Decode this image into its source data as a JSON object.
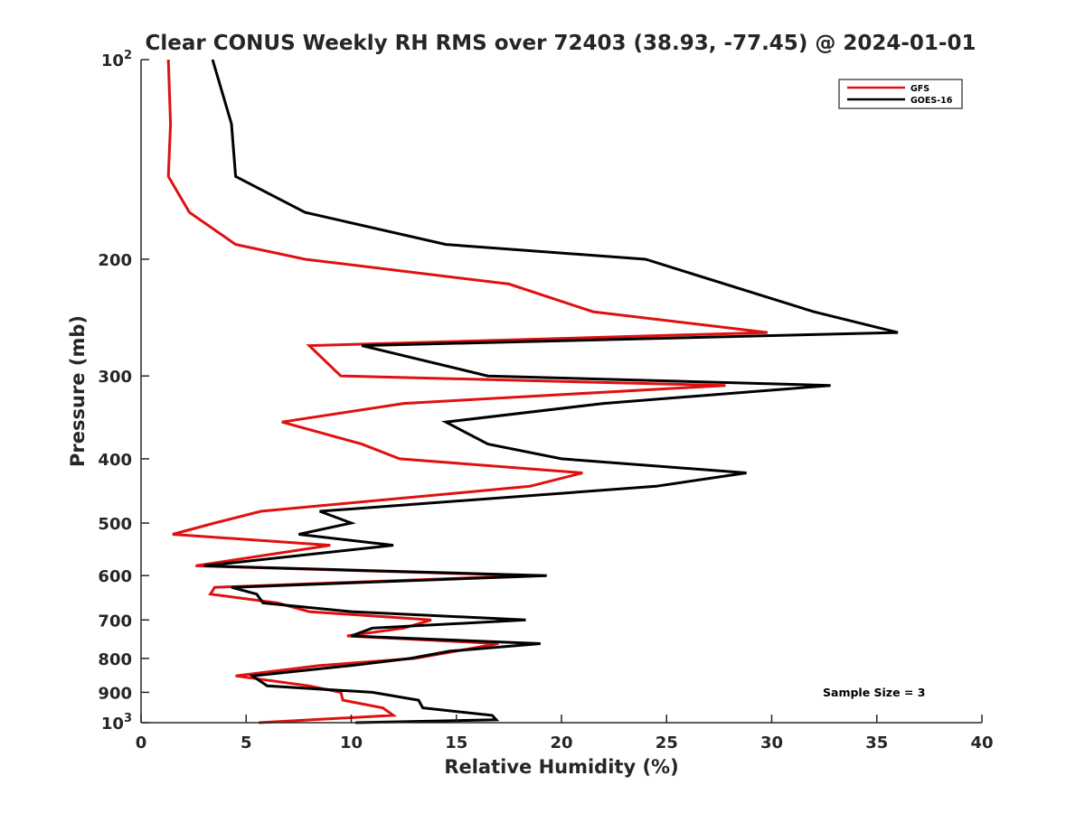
{
  "chart_data": {
    "type": "line",
    "title": "Clear CONUS Weekly RH RMS over 72403 (38.93, -77.45) @ 2024-01-01",
    "xlabel": "Relative Humidity (%)",
    "ylabel": "Pressure (mb)",
    "xlim": [
      0,
      40
    ],
    "ylim": [
      100,
      1000
    ],
    "y_scale": "log",
    "y_reversed": true,
    "grid": false,
    "legend_position": "top-right",
    "x_ticks": [
      "0",
      "5",
      "10",
      "15",
      "20",
      "25",
      "30",
      "35",
      "40"
    ],
    "y_ticks": [
      {
        "value": 100,
        "base": "10",
        "exp": "2"
      },
      {
        "value": 200,
        "label": "200"
      },
      {
        "value": 300,
        "label": "300"
      },
      {
        "value": 400,
        "label": "400"
      },
      {
        "value": 500,
        "label": "500"
      },
      {
        "value": 600,
        "label": "600"
      },
      {
        "value": 700,
        "label": "700"
      },
      {
        "value": 800,
        "label": "800"
      },
      {
        "value": 900,
        "label": "900"
      },
      {
        "value": 1000,
        "base": "10",
        "exp": "3"
      }
    ],
    "series": [
      {
        "name": "GFS",
        "color": "#e01010",
        "points": [
          [
            1.3,
            100
          ],
          [
            1.4,
            125
          ],
          [
            1.3,
            150
          ],
          [
            2.3,
            170
          ],
          [
            4.5,
            190
          ],
          [
            7.8,
            200
          ],
          [
            17.5,
            218
          ],
          [
            21.5,
            240
          ],
          [
            29.8,
            258
          ],
          [
            8.0,
            270
          ],
          [
            9.5,
            300
          ],
          [
            27.8,
            310
          ],
          [
            12.5,
            330
          ],
          [
            6.7,
            352
          ],
          [
            10.5,
            380
          ],
          [
            12.3,
            400
          ],
          [
            21.0,
            420
          ],
          [
            18.5,
            440
          ],
          [
            5.7,
            480
          ],
          [
            3.5,
            500
          ],
          [
            1.5,
            520
          ],
          [
            9.0,
            540
          ],
          [
            2.6,
            580
          ],
          [
            18.5,
            600
          ],
          [
            3.5,
            625
          ],
          [
            3.3,
            640
          ],
          [
            6.5,
            660
          ],
          [
            8.0,
            680
          ],
          [
            13.8,
            700
          ],
          [
            12.5,
            720
          ],
          [
            9.8,
            740
          ],
          [
            17.0,
            760
          ],
          [
            13.0,
            800
          ],
          [
            8.5,
            820
          ],
          [
            4.5,
            850
          ],
          [
            8.0,
            880
          ],
          [
            9.5,
            900
          ],
          [
            9.6,
            925
          ],
          [
            11.5,
            950
          ],
          [
            12.0,
            975
          ],
          [
            5.6,
            1000
          ]
        ]
      },
      {
        "name": "GOES-16",
        "color": "#000000",
        "points": [
          [
            3.4,
            100
          ],
          [
            4.3,
            125
          ],
          [
            4.5,
            150
          ],
          [
            7.8,
            170
          ],
          [
            14.5,
            190
          ],
          [
            24.0,
            200
          ],
          [
            32.0,
            240
          ],
          [
            36.0,
            258
          ],
          [
            10.5,
            270
          ],
          [
            16.5,
            300
          ],
          [
            32.8,
            310
          ],
          [
            22.0,
            330
          ],
          [
            14.5,
            352
          ],
          [
            16.5,
            380
          ],
          [
            20.0,
            400
          ],
          [
            28.8,
            420
          ],
          [
            24.5,
            440
          ],
          [
            8.5,
            480
          ],
          [
            10.0,
            500
          ],
          [
            7.5,
            520
          ],
          [
            12.0,
            540
          ],
          [
            3.0,
            580
          ],
          [
            19.3,
            600
          ],
          [
            4.3,
            625
          ],
          [
            5.5,
            640
          ],
          [
            5.8,
            660
          ],
          [
            10.0,
            680
          ],
          [
            18.3,
            700
          ],
          [
            11.0,
            720
          ],
          [
            10.0,
            740
          ],
          [
            19.0,
            760
          ],
          [
            14.7,
            780
          ],
          [
            12.8,
            800
          ],
          [
            10.0,
            820
          ],
          [
            5.3,
            850
          ],
          [
            6.0,
            880
          ],
          [
            11.0,
            900
          ],
          [
            13.2,
            925
          ],
          [
            13.4,
            950
          ],
          [
            16.7,
            975
          ],
          [
            16.9,
            990
          ],
          [
            10.2,
            1000
          ]
        ]
      }
    ],
    "annotation": "Sample Size = 3"
  }
}
